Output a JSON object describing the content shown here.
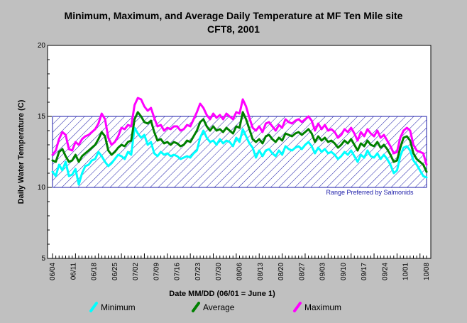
{
  "chart_data": {
    "type": "line",
    "title": "Minimum, Maximum, and Average Daily Temperature at MF Ten Mile site",
    "subtitle": "CFT8, 2001",
    "xlabel": "Date MM/DD (06/01 = June 1)",
    "ylabel": "Daily Water Temperature (C)",
    "ylim": [
      5,
      20
    ],
    "yticks": [
      5,
      10,
      15,
      20
    ],
    "x_start": "06/04",
    "x_end": "10/08",
    "xtick_labels": [
      "06/04",
      "06/11",
      "06/18",
      "06/25",
      "07/02",
      "07/09",
      "07/16",
      "07/23",
      "07/30",
      "08/06",
      "08/13",
      "08/20",
      "08/27",
      "09/03",
      "09/10",
      "09/17",
      "09/24",
      "10/01",
      "10/08"
    ],
    "band": {
      "low": 10,
      "high": 15,
      "label": "Range Preferred by Salmonids",
      "color": "#1a1aa8"
    },
    "series": [
      {
        "name": "Minimum",
        "color": "#00ffff",
        "values": [
          11.1,
          10.8,
          11.6,
          11.2,
          11.8,
          10.8,
          10.9,
          11.3,
          10.2,
          11.0,
          11.5,
          11.6,
          11.9,
          12.0,
          12.5,
          12.2,
          11.8,
          11.5,
          11.7,
          12.0,
          12.3,
          12.2,
          12.0,
          12.5,
          12.3,
          14.2,
          13.8,
          13.5,
          13.7,
          13.0,
          13.2,
          12.4,
          12.2,
          12.5,
          12.3,
          12.4,
          12.2,
          12.3,
          12.2,
          12.0,
          12.1,
          12.2,
          12.1,
          12.4,
          12.6,
          13.5,
          14.0,
          13.5,
          13.2,
          13.3,
          13.0,
          13.4,
          13.1,
          13.3,
          13.2,
          12.9,
          13.5,
          13.2,
          14.1,
          13.6,
          13.1,
          12.8,
          12.1,
          12.6,
          12.2,
          12.6,
          12.7,
          12.4,
          12.2,
          12.6,
          12.3,
          12.9,
          12.7,
          12.6,
          12.8,
          12.9,
          12.7,
          13.0,
          13.2,
          12.9,
          12.4,
          12.8,
          12.5,
          12.7,
          12.4,
          12.5,
          12.3,
          12.0,
          12.2,
          12.5,
          12.3,
          12.6,
          12.2,
          11.8,
          12.3,
          12.1,
          12.6,
          12.2,
          12.1,
          12.4,
          12.0,
          12.3,
          12.0,
          11.6,
          11.0,
          11.2,
          12.2,
          12.8,
          12.9,
          12.6,
          11.9,
          11.6,
          11.2,
          10.8,
          10.7
        ]
      },
      {
        "name": "Average",
        "color": "#008000",
        "values": [
          11.9,
          11.8,
          12.5,
          12.7,
          12.2,
          11.8,
          11.9,
          12.3,
          11.8,
          12.2,
          12.4,
          12.6,
          12.8,
          13.0,
          13.4,
          13.9,
          13.6,
          12.6,
          12.3,
          12.5,
          12.8,
          13.0,
          12.9,
          13.2,
          13.3,
          14.8,
          15.3,
          15.0,
          14.6,
          14.5,
          14.7,
          13.9,
          13.3,
          13.4,
          13.1,
          13.2,
          13.0,
          13.2,
          13.1,
          12.9,
          13.0,
          13.3,
          13.2,
          13.6,
          14.0,
          14.6,
          14.8,
          14.3,
          14.0,
          14.3,
          14.0,
          14.1,
          13.9,
          14.2,
          14.0,
          13.8,
          14.3,
          14.2,
          15.3,
          14.8,
          14.1,
          13.4,
          13.2,
          13.4,
          13.1,
          13.6,
          13.7,
          13.4,
          13.2,
          13.5,
          13.3,
          13.8,
          13.7,
          13.6,
          13.8,
          13.9,
          13.7,
          13.9,
          14.1,
          13.8,
          13.2,
          13.6,
          13.3,
          13.5,
          13.2,
          13.3,
          13.1,
          12.8,
          13.0,
          13.3,
          13.1,
          13.4,
          13.0,
          12.6,
          13.1,
          12.9,
          13.3,
          13.0,
          12.9,
          13.2,
          12.8,
          13.0,
          12.7,
          12.3,
          11.8,
          11.9,
          12.8,
          13.5,
          13.6,
          13.3,
          12.4,
          12.0,
          11.8,
          11.6,
          11.1
        ]
      },
      {
        "name": "Maximum",
        "color": "#ff00ff",
        "values": [
          12.3,
          12.6,
          13.4,
          13.9,
          13.7,
          12.7,
          12.6,
          13.2,
          13.0,
          13.4,
          13.6,
          13.7,
          13.9,
          14.1,
          14.5,
          15.2,
          14.8,
          13.5,
          13.0,
          13.2,
          13.6,
          14.2,
          14.1,
          14.4,
          14.3,
          15.8,
          16.3,
          16.2,
          15.7,
          15.4,
          15.6,
          14.9,
          14.3,
          14.4,
          14.0,
          14.2,
          14.1,
          14.3,
          14.3,
          14.0,
          14.1,
          14.4,
          14.3,
          14.8,
          15.3,
          15.9,
          15.6,
          15.1,
          14.8,
          15.2,
          14.9,
          15.1,
          14.8,
          15.2,
          15.0,
          14.8,
          15.3,
          15.2,
          16.2,
          15.7,
          14.9,
          14.2,
          14.0,
          14.3,
          13.9,
          14.5,
          14.6,
          14.3,
          14.0,
          14.4,
          14.2,
          14.8,
          14.6,
          14.5,
          14.7,
          14.8,
          14.6,
          14.8,
          15.0,
          14.7,
          14.0,
          14.5,
          14.1,
          14.4,
          14.0,
          14.1,
          13.9,
          13.5,
          13.7,
          14.1,
          13.9,
          14.2,
          13.8,
          13.3,
          13.9,
          13.6,
          14.1,
          13.8,
          13.6,
          14.0,
          13.5,
          13.7,
          13.3,
          12.9,
          12.4,
          12.5,
          13.5,
          14.0,
          14.2,
          14.0,
          13.0,
          12.6,
          12.5,
          12.4,
          11.6
        ]
      }
    ]
  }
}
